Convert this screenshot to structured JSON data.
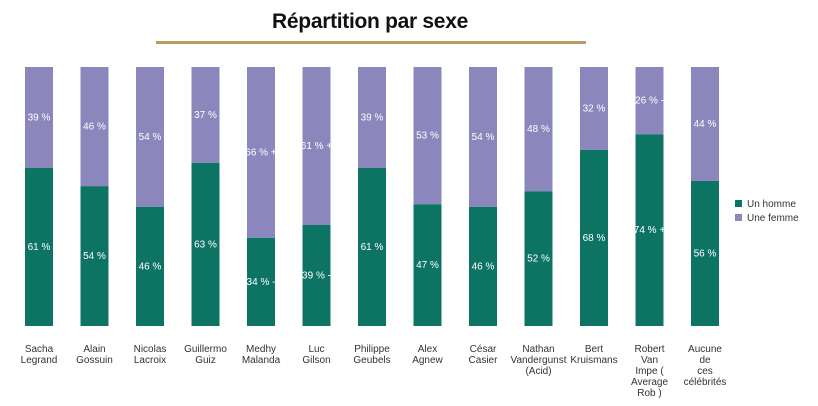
{
  "chart_data": {
    "type": "bar",
    "stacked": true,
    "title": "Répartition par sexe",
    "categories": [
      "Sacha Legrand",
      "Alain Gossuin",
      "Nicolas Lacroix",
      "Guillermo Guiz",
      "Medhy Malanda",
      "Luc Gilson",
      "Philippe Geubels",
      "Alex Agnew",
      "César Casier",
      "Nathan Vandergunst (Acid)",
      "Bert Kruismans",
      "Robert Van Impe ( Average Rob )",
      "Aucune de ces célébrités"
    ],
    "category_lines": [
      [
        "Sacha",
        "Legrand"
      ],
      [
        "Alain",
        "Gossuin"
      ],
      [
        "Nicolas",
        "Lacroix"
      ],
      [
        "Guillermo",
        "Guiz"
      ],
      [
        "Medhy",
        "Malanda"
      ],
      [
        "Luc",
        "Gilson"
      ],
      [
        "Philippe",
        "Geubels"
      ],
      [
        "Alex",
        "Agnew"
      ],
      [
        "César",
        "Casier"
      ],
      [
        "Nathan",
        "Vandergunst",
        "(Acid)"
      ],
      [
        "Bert",
        "Kruismans"
      ],
      [
        "Robert",
        "Van",
        "Impe (",
        "Average",
        "Rob )"
      ],
      [
        "Aucune",
        "de",
        "ces",
        "célébrités"
      ]
    ],
    "series": [
      {
        "name": "Un homme",
        "color": "#0d7464",
        "values": [
          61,
          54,
          46,
          63,
          34,
          39,
          61,
          47,
          46,
          52,
          68,
          74,
          56
        ],
        "labels": [
          "61 %",
          "54 %",
          "46 %",
          "63 %",
          "34 % -",
          "39 % -",
          "61 %",
          "47 %",
          "46 %",
          "52 %",
          "68 %",
          "74 % +",
          "56 %"
        ]
      },
      {
        "name": "Une femme",
        "color": "#8b87bd",
        "values": [
          39,
          46,
          54,
          37,
          66,
          61,
          39,
          53,
          54,
          48,
          32,
          26,
          44
        ],
        "labels": [
          "39 %",
          "46 %",
          "54 %",
          "37 %",
          "66 % +",
          "61 % +",
          "39 %",
          "53 %",
          "54 %",
          "48 %",
          "32 %",
          "26 % -",
          "44 %"
        ]
      }
    ],
    "ylim": [
      0,
      100
    ],
    "legend": "right"
  }
}
